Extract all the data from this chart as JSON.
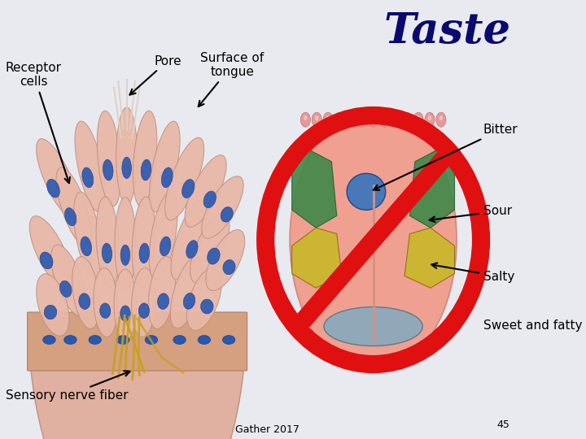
{
  "background_color": "#e8eaf0",
  "title": "Taste",
  "title_color": "#0a0a6e",
  "title_fontsize": 38,
  "title_fontweight": "bold",
  "labels": {
    "receptor_cells": "Receptor\ncells",
    "pore": "Pore",
    "surface_of_tongue": "Surface of\ntongue",
    "sensory_nerve_fiber": "Sensory nerve fiber",
    "bitter": "Bitter",
    "sour": "Sour",
    "salty": "Salty",
    "sweet_fatty": "Sweet and fatty"
  },
  "label_fontsize": 11,
  "footer": "Gather 2017",
  "footer_fontsize": 9,
  "page_num": "45",
  "cell_color": "#e8b8a8",
  "cell_edge": "#c09080",
  "nucleus_color": "#2858b0",
  "nucleus_edge": "#1a3888",
  "nerve_color": "#c8a020",
  "bottom_tissue_color": "#d8a888",
  "tongue_pink": "#f0a090",
  "tongue_green": "#408848",
  "tongue_yellow": "#c8b828",
  "tongue_blue": "#4878b8",
  "tongue_gray": "#90a8b8",
  "tongue_papillae": "#e89898",
  "no_red": "#e01010",
  "no_linewidth": 16
}
